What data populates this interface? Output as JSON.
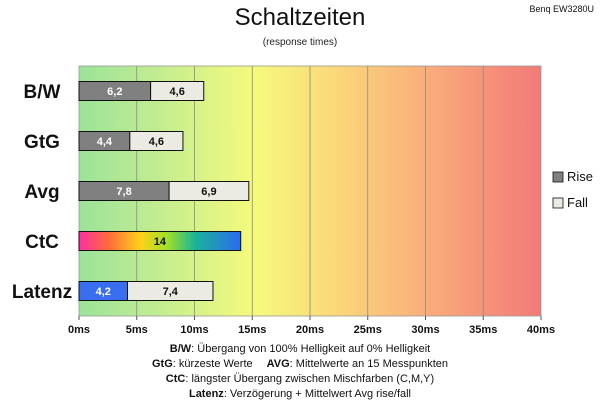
{
  "header": {
    "title": "Schaltzeiten",
    "subtitle": "(response times)",
    "corner_label": "Benq EW3280U"
  },
  "chart_data": {
    "type": "bar",
    "orientation": "horizontal",
    "stacked": true,
    "categories": [
      "B/W",
      "GtG",
      "Avg",
      "CtC",
      "Latenz"
    ],
    "series": [
      {
        "name": "Rise",
        "values": [
          6.2,
          4.4,
          7.8,
          null,
          4.2
        ],
        "color": "#808080"
      },
      {
        "name": "Fall",
        "values": [
          4.6,
          4.6,
          6.9,
          null,
          7.4
        ],
        "color": "#ecebe3"
      }
    ],
    "ctc": {
      "category": "CtC",
      "value": 14,
      "fill": "rainbow"
    },
    "latenz_rise_color": "#3a6ef0",
    "x_ticks": [
      "0ms",
      "5ms",
      "10ms",
      "15ms",
      "20ms",
      "25ms",
      "30ms",
      "35ms",
      "40ms"
    ],
    "xlim": [
      0,
      40
    ],
    "grid": true,
    "legend_position": "right",
    "background": "gradient green-yellow-red",
    "bar_value_labels": {
      "B/W": [
        "6,2",
        "4,6"
      ],
      "GtG": [
        "4,4",
        "4,6"
      ],
      "Avg": [
        "7,8",
        "6,9"
      ],
      "CtC": [
        "14"
      ],
      "Latenz": [
        "4,2",
        "7,4"
      ]
    }
  },
  "notes": {
    "line1": {
      "key": "B/W",
      "text": ":  Übergang von 100% Helligkeit auf 0% Helligkeit"
    },
    "line2a": {
      "key": "GtG",
      "text": ": kürzeste  Werte"
    },
    "line2b": {
      "key": "AVG",
      "text": ": Mittelwerte  an 15 Messpunkten"
    },
    "line3": {
      "key": "CtC",
      "text": ": längster Übergang  zwischen Mischfarben  (C,M,Y)"
    },
    "line4": {
      "key": "Latenz",
      "text": ": Verzögerung  + Mittelwert Avg rise/fall"
    }
  }
}
